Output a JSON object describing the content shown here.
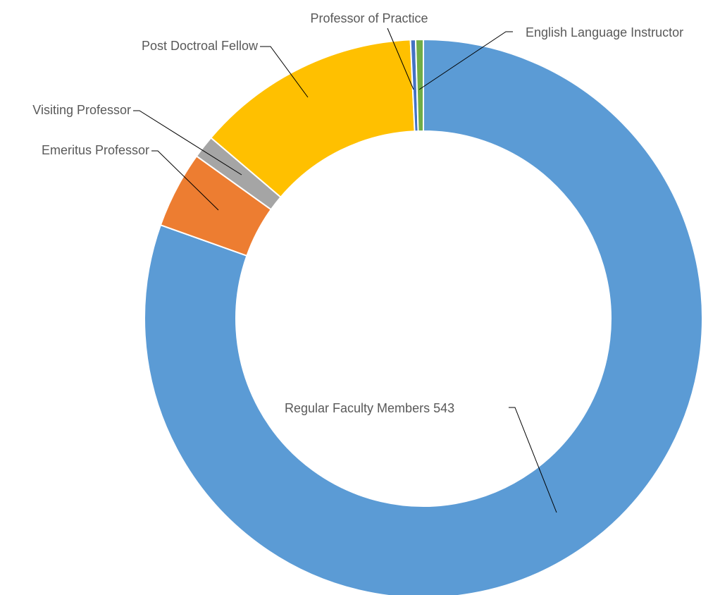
{
  "chart_data": {
    "type": "donut",
    "categories": [
      "Regular Faculty Members",
      "Emeritus Professor",
      "Visiting Professor",
      "Post Doctroal Fellow",
      "Professor of Practice",
      "English Language Instructor"
    ],
    "values": [
      543,
      30,
      9,
      88,
      2,
      3
    ],
    "value_labels": [
      "543",
      null,
      null,
      null,
      null,
      null
    ],
    "colors": [
      "#5b9bd5",
      "#ed7d31",
      "#a5a5a5",
      "#ffc000",
      "#4472c4",
      "#70ad47"
    ]
  }
}
